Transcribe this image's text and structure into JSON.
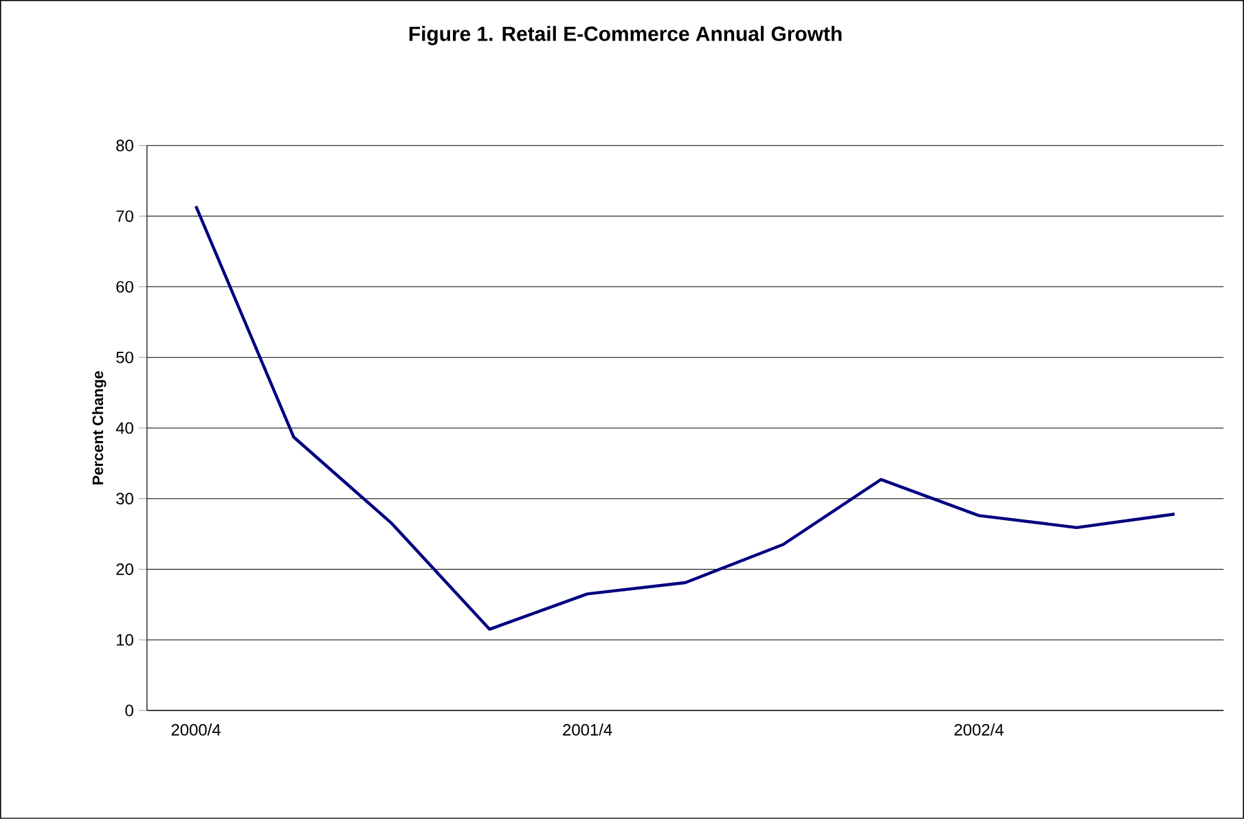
{
  "chart_data": {
    "type": "line",
    "title": "Figure 1. Retail E-Commerce Annual Growth",
    "ylabel": "Percent Change",
    "categories": [
      "2000/4",
      null,
      null,
      null,
      "2001/4",
      null,
      null,
      null,
      "2002/4",
      null,
      null
    ],
    "values": [
      71.4,
      38.7,
      26.5,
      11.5,
      16.5,
      18.1,
      23.5,
      32.7,
      27.6,
      25.9,
      27.8
    ],
    "color": "#000080",
    "ylim": [
      0,
      80
    ],
    "yticks": [
      0,
      10,
      20,
      30,
      40,
      50,
      60,
      70,
      80
    ],
    "grid": "y"
  }
}
